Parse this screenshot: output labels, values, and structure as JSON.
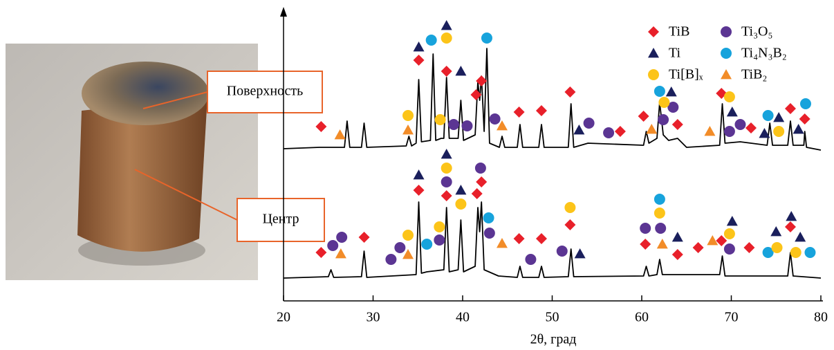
{
  "photo": {
    "labels": [
      "Поверхность",
      "Центр"
    ]
  },
  "chart_data": {
    "type": "line",
    "xlabel": "2θ, град",
    "xlim": [
      20,
      80
    ],
    "xticks": [
      20,
      30,
      40,
      50,
      60,
      70,
      80
    ],
    "ylim": [
      0,
      420
    ],
    "series": [
      {
        "color": "#000000",
        "x": [
          20,
          24,
          26.8,
          27.1,
          27.4,
          28.7,
          29.0,
          29.3,
          33.7,
          34.0,
          34.3,
          34.8,
          35.1,
          35.4,
          36.4,
          36.7,
          37.0,
          37.6,
          37.9,
          38.2,
          38.5,
          39.5,
          39.8,
          40.1,
          41.4,
          41.7,
          41.9,
          42.1,
          42.4,
          42.7,
          43.0,
          44.1,
          44.4,
          44.7,
          46.1,
          46.4,
          46.7,
          48.5,
          48.8,
          49.1,
          51.8,
          52.1,
          52.4,
          54.0,
          60.2,
          60.5,
          60.8,
          61.7,
          62.0,
          62.4,
          63.0,
          64.0,
          65,
          68.7,
          69.0,
          69.3,
          71,
          74.0,
          74.3,
          74.6,
          76.3,
          76.6,
          76.9,
          78.1,
          78.2,
          78.4,
          80
        ],
        "values": [
          220,
          222,
          222,
          260,
          222,
          222,
          257,
          222,
          224,
          238,
          224,
          228,
          320,
          230,
          232,
          357,
          232,
          235,
          235,
          323,
          235,
          235,
          290,
          232,
          240,
          317,
          290,
          325,
          245,
          365,
          228,
          222,
          238,
          222,
          222,
          255,
          222,
          222,
          255,
          222,
          222,
          285,
          222,
          228,
          225,
          245,
          228,
          235,
          287,
          240,
          232,
          235,
          222,
          225,
          285,
          228,
          230,
          225,
          257,
          225,
          225,
          260,
          225,
          225,
          245,
          222,
          218
        ]
      },
      {
        "color": "#000000",
        "x": [
          20,
          25.0,
          25.3,
          25.6,
          28.7,
          29.0,
          29.3,
          34.8,
          35.1,
          35.4,
          36.0,
          37.9,
          38.2,
          38.5,
          39.5,
          39.8,
          40.1,
          41.4,
          41.7,
          41.9,
          42.1,
          42.4,
          44.0,
          46.1,
          46.4,
          46.7,
          48.5,
          48.8,
          49.1,
          51.8,
          52.1,
          52.4,
          60.2,
          60.5,
          60.8,
          61.7,
          62.0,
          62.3,
          68.7,
          69.0,
          69.3,
          76.3,
          76.6,
          76.9,
          80
        ],
        "values": [
          33,
          35,
          45,
          34,
          35,
          72,
          34,
          38,
          143,
          40,
          42,
          45,
          135,
          42,
          45,
          117,
          42,
          50,
          135,
          100,
          143,
          45,
          36,
          34,
          50,
          34,
          34,
          50,
          34,
          35,
          75,
          35,
          36,
          50,
          36,
          38,
          60,
          38,
          38,
          65,
          36,
          36,
          70,
          36,
          33
        ]
      }
    ],
    "markers": [
      {
        "name": "TiB",
        "color": "#e8202a",
        "shape": "diamond",
        "x": [
          24.2,
          35.1,
          38.2,
          41.5,
          42.1,
          46.3,
          48.8,
          52.0,
          60.2,
          57.6,
          64.0,
          68.9,
          72.2,
          76.6,
          78.2,
          24.2,
          29.0,
          35.1,
          38.2,
          41.6,
          42.1,
          46.3,
          48.8,
          52.0,
          60.4,
          64.0,
          66.3,
          68.9,
          72.0,
          76.6
        ],
        "values": [
          252,
          348,
          332,
          298,
          318,
          273,
          275,
          302,
          267,
          245,
          255,
          300,
          250,
          278,
          263,
          70,
          92,
          160,
          152,
          155,
          172,
          90,
          90,
          110,
          82,
          67,
          77,
          87,
          77,
          107
        ]
      },
      {
        "name": "Ti₃O₅",
        "color": "#5b3593",
        "shape": "circle",
        "x": [
          39.0,
          40.5,
          43.6,
          54.1,
          56.3,
          62.4,
          63.5,
          69.8,
          71.0,
          25.5,
          26.5,
          32.0,
          33.0,
          37.4,
          38.2,
          42.0,
          43.0,
          47.6,
          51.1,
          60.4,
          62.1,
          69.8
        ],
        "values": [
          255,
          253,
          263,
          257,
          243,
          262,
          280,
          245,
          255,
          80,
          92,
          60,
          77,
          88,
          172,
          192,
          98,
          60,
          72,
          105,
          105,
          75
        ]
      },
      {
        "name": "Ti",
        "color": "#1a1f5c",
        "shape": "triangle",
        "x": [
          35.1,
          38.2,
          39.8,
          53.0,
          63.3,
          70.1,
          73.7,
          75.3,
          77.5,
          35.1,
          38.2,
          39.8,
          53.1,
          64.0,
          70.1,
          75.0,
          76.7,
          77.7
        ],
        "values": [
          367,
          398,
          332,
          247,
          302,
          273,
          242,
          265,
          248,
          182,
          212,
          160,
          68,
          92,
          115,
          100,
          122,
          92
        ]
      },
      {
        "name": "Ti₄N₃B₂",
        "color": "#17a3dc",
        "shape": "circle",
        "x": [
          36.5,
          42.7,
          62.0,
          74.1,
          78.3,
          36.0,
          42.9,
          62.0,
          74.1,
          78.8
        ],
        "values": [
          377,
          380,
          303,
          268,
          285,
          82,
          120,
          147,
          70,
          70
        ]
      },
      {
        "name": "Ti[B]ₓ",
        "color": "#fcc419",
        "shape": "circle",
        "x": [
          33.9,
          37.5,
          38.2,
          62.5,
          69.8,
          75.3,
          33.9,
          37.4,
          38.2,
          39.8,
          52.0,
          62.0,
          69.8,
          75.1,
          77.2
        ],
        "values": [
          268,
          262,
          380,
          287,
          295,
          245,
          95,
          107,
          192,
          140,
          135,
          127,
          97,
          77,
          70
        ]
      },
      {
        "name": "TiB₂",
        "color": "#f28c28",
        "shape": "triangle",
        "x": [
          26.3,
          33.9,
          44.4,
          61.1,
          67.6,
          26.4,
          33.9,
          44.4,
          62.3,
          67.9
        ],
        "values": [
          240,
          247,
          253,
          248,
          245,
          68,
          67,
          83,
          82,
          87
        ]
      }
    ]
  }
}
